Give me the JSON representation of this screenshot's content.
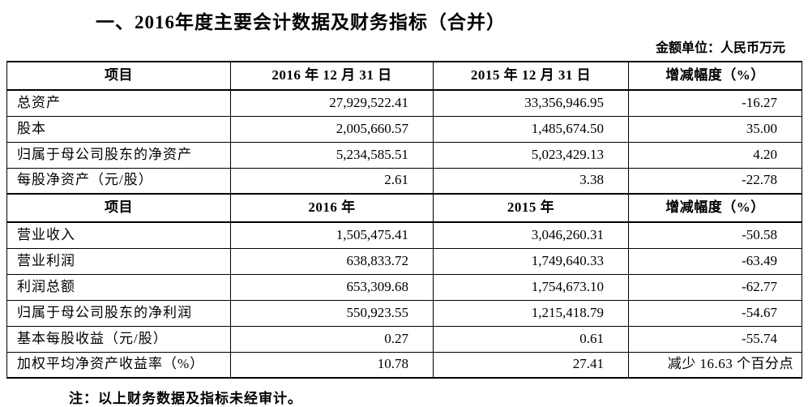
{
  "page": {
    "title": "一、2016年度主要会计数据及财务指标（合并）",
    "unit_label": "金额单位：人民币万元",
    "note": "注：以上财务数据及指标未经审计。"
  },
  "table": {
    "section1": {
      "headers": [
        "项目",
        "2016 年 12 月 31 日",
        "2015 年 12 月 31 日",
        "增减幅度（%）"
      ],
      "rows": [
        [
          "总资产",
          "27,929,522.41",
          "33,356,946.95",
          "-16.27"
        ],
        [
          "股本",
          "2,005,660.57",
          "1,485,674.50",
          "35.00"
        ],
        [
          "归属于母公司股东的净资产",
          "5,234,585.51",
          "5,023,429.13",
          "4.20"
        ],
        [
          "每股净资产（元/股）",
          "2.61",
          "3.38",
          "-22.78"
        ]
      ]
    },
    "section2": {
      "headers": [
        "项目",
        "2016 年",
        "2015 年",
        "增减幅度（%）"
      ],
      "rows": [
        [
          "营业收入",
          "1,505,475.41",
          "3,046,260.31",
          "-50.58"
        ],
        [
          "营业利润",
          "638,833.72",
          "1,749,640.33",
          "-63.49"
        ],
        [
          "利润总额",
          "653,309.68",
          "1,754,673.10",
          "-62.77"
        ],
        [
          "归属于母公司股东的净利润",
          "550,923.55",
          "1,215,418.79",
          "-54.67"
        ],
        [
          "基本每股收益（元/股）",
          "0.27",
          "0.61",
          "-55.74"
        ],
        [
          "加权平均净资产收益率（%）",
          "10.78",
          "27.41",
          "减少 16.63 个百分点"
        ]
      ]
    }
  }
}
